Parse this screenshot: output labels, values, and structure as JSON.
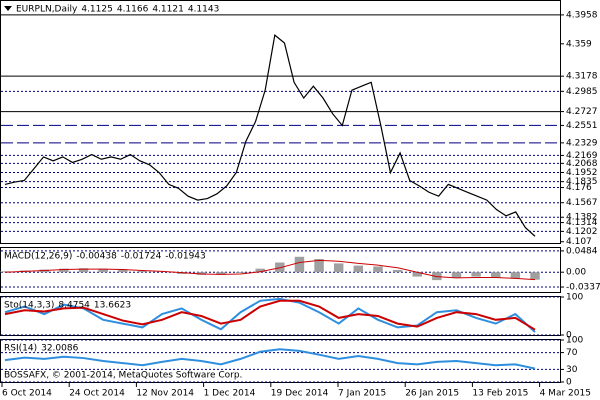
{
  "chart_data": [
    {
      "type": "line",
      "title": "EURPLN,Daily",
      "ohlc": [
        4.1125,
        4.1166,
        4.1121,
        4.1143
      ],
      "color": "#000000",
      "values": [
        4.18,
        4.183,
        4.185,
        4.2,
        4.215,
        4.21,
        4.215,
        4.208,
        4.212,
        4.218,
        4.212,
        4.215,
        4.212,
        4.218,
        4.21,
        4.205,
        4.195,
        4.18,
        4.175,
        4.165,
        4.16,
        4.162,
        4.168,
        4.178,
        4.195,
        4.235,
        4.26,
        4.3,
        4.37,
        4.36,
        4.31,
        4.29,
        4.305,
        4.29,
        4.27,
        4.255,
        4.3,
        4.305,
        4.31,
        4.255,
        4.195,
        4.22,
        4.185,
        4.178,
        4.17,
        4.165,
        4.18,
        4.175,
        4.17,
        4.165,
        4.16,
        4.148,
        4.14,
        4.145,
        4.125,
        4.114
      ],
      "ylim": [
        4.1054,
        4.4135
      ],
      "yticks": [
        4.3958,
        4.359,
        4.3178,
        4.2985,
        4.2727,
        4.2551,
        4.2329,
        4.2169,
        4.2068,
        4.1952,
        4.1835,
        4.176,
        4.1567,
        4.1382,
        4.1314,
        4.1202,
        4.107
      ],
      "ytick_styles": [
        "solid",
        "none",
        "solid",
        "dotted",
        "solid",
        "dashed",
        "dashed",
        "dotted",
        "dotted",
        "dotted",
        "dotted",
        "dotted",
        "dotted",
        "dotted",
        "dotted",
        "dotted",
        "none"
      ],
      "date_labels": [
        "6 Oct 2014",
        "24 Oct 2014",
        "12 Nov 2014",
        "1 Dec 2014",
        "19 Dec 2014",
        "7 Jan 2015",
        "26 Jan 2015",
        "13 Feb 2015",
        "4 Mar 2015"
      ]
    },
    {
      "type": "macd",
      "title": "MACD(12,26,9)",
      "readings": [
        -0.00438,
        -0.01724,
        -0.01943
      ],
      "series": [
        {
          "name": "MACD",
          "color": "#a0a0a0",
          "values": [
            0.002,
            0.004,
            0.006,
            0.008,
            0.009,
            0.008,
            0.006,
            0.003,
            0.0,
            -0.004,
            -0.006,
            -0.006,
            -0.002,
            0.008,
            0.022,
            0.035,
            0.03,
            0.02,
            0.015,
            0.013,
            0.005,
            -0.01,
            -0.018,
            -0.012,
            -0.01,
            -0.012,
            -0.015,
            -0.017
          ]
        },
        {
          "name": "Signal",
          "color": "#cc0000",
          "values": [
            0.0,
            0.002,
            0.004,
            0.006,
            0.007,
            0.007,
            0.006,
            0.004,
            0.002,
            -0.001,
            -0.004,
            -0.005,
            -0.004,
            0.001,
            0.01,
            0.022,
            0.027,
            0.025,
            0.02,
            0.016,
            0.01,
            0.0,
            -0.01,
            -0.013,
            -0.012,
            -0.012,
            -0.014,
            -0.017
          ]
        }
      ],
      "ylim": [
        -0.045,
        0.055
      ],
      "yticks": [
        0.0484,
        {
          "value": 0,
          "label": "0.00"
        },
        -0.0337
      ]
    },
    {
      "type": "stochastic",
      "title": "Sto(14,3,3)",
      "readings": [
        8.4754,
        13.6623
      ],
      "series": [
        {
          "name": "Main",
          "color": "#2f8fdf",
          "values": [
            60,
            75,
            55,
            80,
            70,
            40,
            30,
            20,
            55,
            70,
            40,
            15,
            60,
            90,
            95,
            85,
            60,
            30,
            70,
            40,
            20,
            25,
            60,
            65,
            45,
            30,
            55,
            8
          ]
        },
        {
          "name": "Signal",
          "color": "#cc0000",
          "values": [
            55,
            65,
            62,
            70,
            72,
            55,
            38,
            28,
            40,
            60,
            50,
            30,
            40,
            75,
            90,
            90,
            75,
            45,
            55,
            50,
            30,
            22,
            45,
            60,
            55,
            40,
            45,
            14
          ]
        }
      ],
      "ylim": [
        0,
        100
      ],
      "yticks": [
        100,
        0
      ]
    },
    {
      "type": "rsi",
      "title": "RSI(14)",
      "readings": [
        32.0086
      ],
      "footer": "BOSSAFX, © 2001-2014, MetaQuotes Software Corp.",
      "series": [
        {
          "name": "RSI",
          "color": "#2f8fdf",
          "values": [
            52,
            58,
            55,
            60,
            57,
            50,
            45,
            40,
            48,
            55,
            50,
            42,
            55,
            72,
            78,
            74,
            65,
            55,
            62,
            55,
            45,
            42,
            48,
            50,
            45,
            40,
            42,
            32
          ]
        }
      ],
      "ylim": [
        0,
        100
      ],
      "yticks": [
        100,
        70,
        30,
        0
      ]
    }
  ]
}
